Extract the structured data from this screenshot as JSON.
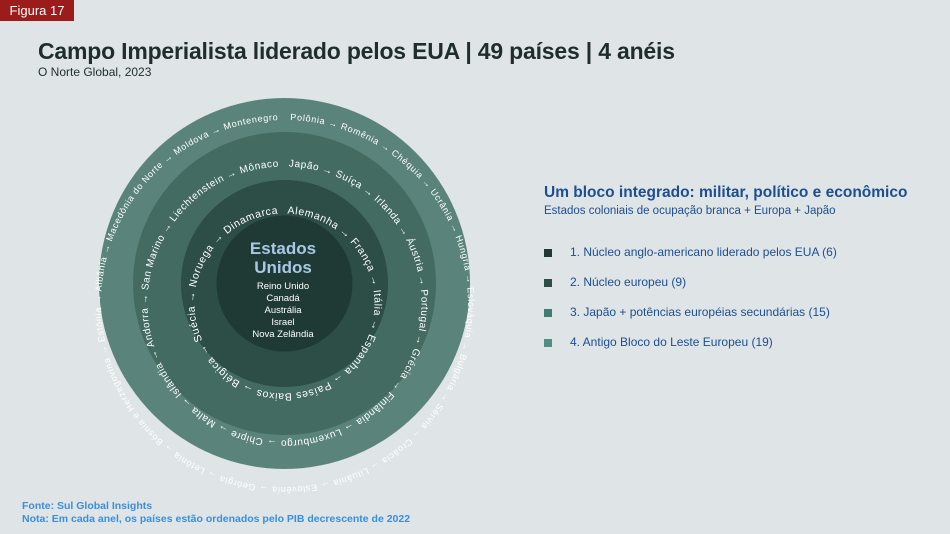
{
  "figure_label": "Figura 17",
  "title": "Campo Imperialista liderado pelos EUA | 49 países | 4 anéis",
  "subtitle": "O Norte Global, 2023",
  "colors": {
    "ring_outer": "#5a847b",
    "ring_3": "#436b62",
    "ring_2": "#2d4d47",
    "ring_1": "#1f3a35",
    "center": "#13201e",
    "ring_text": "#ffffff",
    "center_title": "#a9c8e6",
    "accent_blue": "#1d4e8f",
    "footer_blue": "#3b8ed9",
    "badge_red": "#9c1c1c"
  },
  "diagram": {
    "center": {
      "title_line1": "Estados",
      "title_line2": "Unidos",
      "members": [
        "Reino Unido",
        "Canadá",
        "Austrália",
        "Israel",
        "Nova Zelândia"
      ]
    },
    "rings": [
      {
        "name": "Núcleo europeu",
        "text": "Alemanha → França → Itália → Espanha → Países Baixos → Bélgica → Suécia → Noruega → Dinamarca"
      },
      {
        "name": "Japão + potências européias secundárias",
        "text": "Japão → Suíça → Irlanda → Áustria → Portugal → Grécia → Finlândia → Luxemburgo → Chipre → Malta → Islândia → Andorra → San Marino → Liechtenstein → Mônaco"
      },
      {
        "name": "Antigo Bloco do Leste Europeu",
        "text": "Polônia → Romênia → Chéquia → Ucrânia → Hungria → Eslováquia → Bulgária → Sérvia → Croácia → Lituânia → Eslovênia → Geórgia → Letônia → Bósnia e Herzegovina → Estônia → Albânia → Macedônia do Norte → Moldova → Montenegro"
      }
    ]
  },
  "panel": {
    "heading": "Um bloco integrado: militar, político e econômico",
    "subheading": "Estados coloniais de ocupação branca + Europa + Japão"
  },
  "legend": [
    {
      "label": "1. Núcleo anglo-americano liderado pelos EUA (6)",
      "color": "#1f3a35"
    },
    {
      "label": "2. Núcleo europeu (9)",
      "color": "#2d4d47"
    },
    {
      "label": "3. Japão + potências européias secundárias (15)",
      "color": "#3f7d72"
    },
    {
      "label": "4. Antigo Bloco do Leste Europeu (19)",
      "color": "#4f8e82"
    }
  ],
  "footer": {
    "source": "Fonte: Sul Global Insights",
    "note": "Nota: Em cada anel, os países estão ordenados pelo PIB decrescente de 2022"
  }
}
